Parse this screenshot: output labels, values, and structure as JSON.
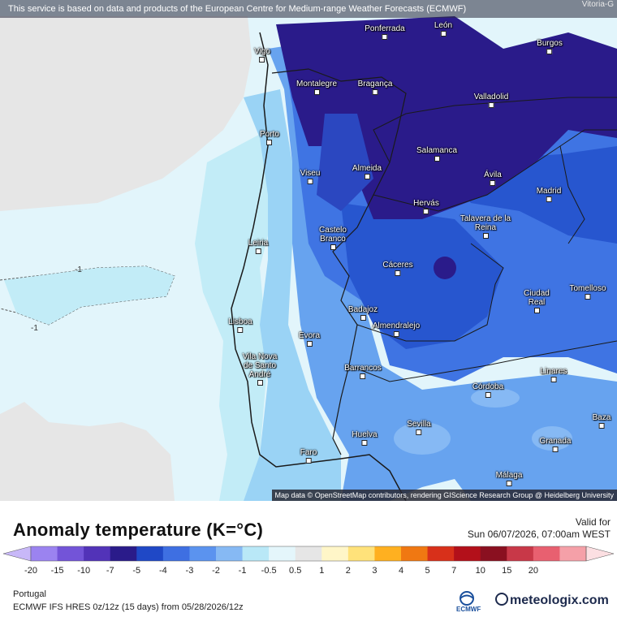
{
  "banner": "This service is based on data and products of the European Centre for Medium-range Weather Forecasts (ECMWF)",
  "corner_label": "Vitoria-G",
  "attribution": "Map data © OpenStreetMap contributors, rendering GIScience Research Group @ Heidelberg University",
  "cities": [
    {
      "name": "Ponferrada"
    },
    {
      "name": "León"
    },
    {
      "name": "Burgos"
    },
    {
      "name": "Vigo"
    },
    {
      "name": "Montalegre"
    },
    {
      "name": "Bragança"
    },
    {
      "name": "Valladolid"
    },
    {
      "name": "Porto"
    },
    {
      "name": "Salamanca"
    },
    {
      "name": "Viseu"
    },
    {
      "name": "Almeida"
    },
    {
      "name": "Ávila"
    },
    {
      "name": "Madrid"
    },
    {
      "name": "Hervás"
    },
    {
      "name": "Talavera de la Reina"
    },
    {
      "name": "Castelo Branco"
    },
    {
      "name": "Leiria"
    },
    {
      "name": "Cáceres"
    },
    {
      "name": "Ciudad Real"
    },
    {
      "name": "Tomelloso"
    },
    {
      "name": "Badajoz"
    },
    {
      "name": "Lisboa"
    },
    {
      "name": "Almendralejo"
    },
    {
      "name": "Evora"
    },
    {
      "name": "Vila Nova de Santo André"
    },
    {
      "name": "Barrancos"
    },
    {
      "name": "Linares"
    },
    {
      "name": "Córdoba"
    },
    {
      "name": "Baza"
    },
    {
      "name": "Sevilla"
    },
    {
      "name": "Huelva"
    },
    {
      "name": "Granada"
    },
    {
      "name": "Faro"
    },
    {
      "name": "Málaga"
    }
  ],
  "contour_labels": [
    "-1",
    "-1"
  ],
  "legend": {
    "title": "Anomaly temperature (K=°C)",
    "valid_label": "Valid for",
    "valid_time": "Sun 06/07/2026, 07:00am WEST",
    "ticks": [
      "-20",
      "-15",
      "-10",
      "-7",
      "-5",
      "-4",
      "-3",
      "-2",
      "-1",
      "-0.5",
      "0.5",
      "1",
      "2",
      "3",
      "4",
      "5",
      "7",
      "10",
      "15",
      "20"
    ],
    "colors": [
      "#c8b8f8",
      "#9b83f0",
      "#7354d8",
      "#5233b8",
      "#2a1b8a",
      "#1f48c6",
      "#3e6fe2",
      "#5b93ef",
      "#86b9f4",
      "#b9e8f7",
      "#e4f6fb",
      "#e6e6e6",
      "#fff6c8",
      "#ffe27a",
      "#ffb020",
      "#f07812",
      "#d8301a",
      "#b3101a",
      "#8a1020",
      "#c83848",
      "#e86070",
      "#f5a0a8",
      "#fcdfe2"
    ],
    "region": "Portugal",
    "model": "ECMWF IFS HRES 0z/12z (15 days) from 05/28/2026/12z",
    "ecmwf_logo": "ECMWF",
    "brand": "meteologix.com"
  }
}
